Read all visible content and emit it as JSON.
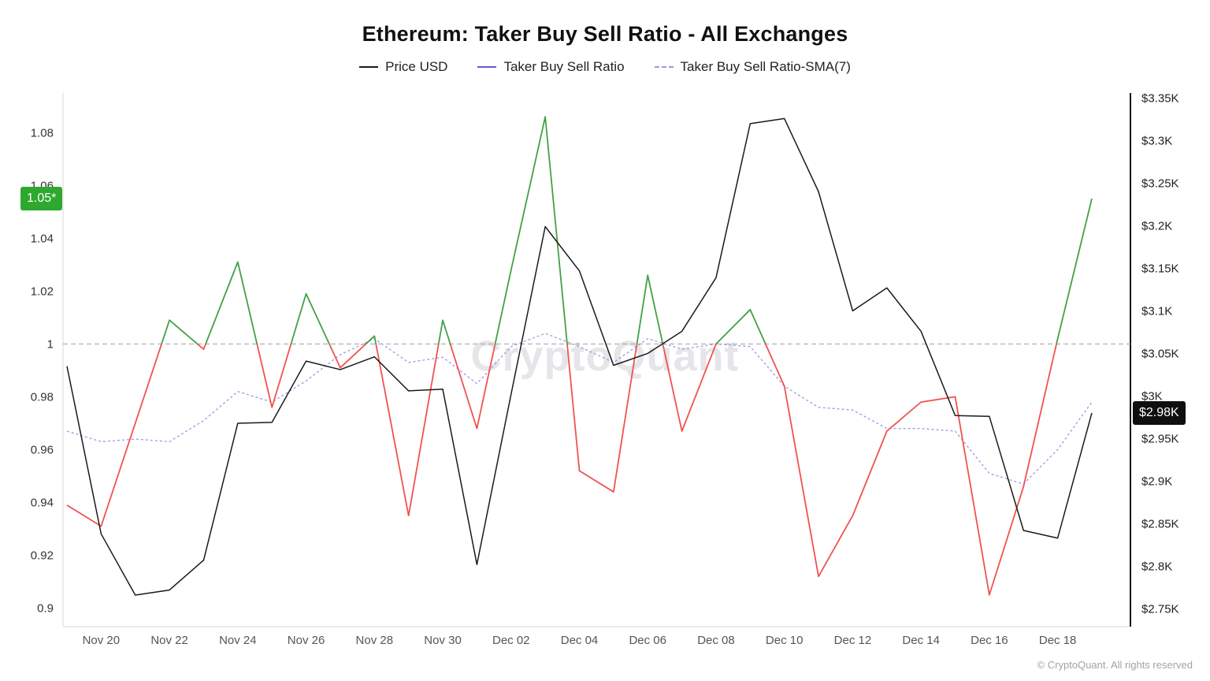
{
  "header": {
    "title": "Ethereum: Taker Buy Sell Ratio - All Exchanges"
  },
  "legend": {
    "items": [
      {
        "label": "Price USD",
        "color": "#1a1a1a",
        "style": "solid"
      },
      {
        "label": "Taker Buy Sell Ratio",
        "color": "#6a5acd",
        "style": "solid"
      },
      {
        "label": "Taker Buy Sell Ratio-SMA(7)",
        "color": "#9f97e3",
        "style": "dashed"
      }
    ]
  },
  "watermark": "CryptoQuant",
  "footer": {
    "copyright": "© CryptoQuant. All rights reserved"
  },
  "chart_data": {
    "type": "line",
    "title": "Ethereum: Taker Buy Sell Ratio - All Exchanges",
    "legend_position": "top",
    "grid": "baseline-only",
    "x": [
      "Nov 19",
      "Nov 20",
      "Nov 21",
      "Nov 22",
      "Nov 23",
      "Nov 24",
      "Nov 25",
      "Nov 26",
      "Nov 27",
      "Nov 28",
      "Nov 29",
      "Nov 30",
      "Dec 01",
      "Dec 02",
      "Dec 03",
      "Dec 04",
      "Dec 05",
      "Dec 06",
      "Dec 07",
      "Dec 08",
      "Dec 09",
      "Dec 10",
      "Dec 11",
      "Dec 12",
      "Dec 13",
      "Dec 14",
      "Dec 15",
      "Dec 16",
      "Dec 17",
      "Dec 18",
      "Dec 19"
    ],
    "x_tick_indices": [
      1,
      3,
      5,
      7,
      9,
      11,
      13,
      15,
      17,
      19,
      21,
      23,
      25,
      27,
      29
    ],
    "series": [
      {
        "name": "Price USD",
        "axis": "right",
        "unit": "K USD",
        "color": "#1a1a1a",
        "values": [
          3.035,
          2.838,
          2.766,
          2.772,
          2.807,
          2.968,
          2.969,
          3.041,
          3.031,
          3.046,
          3.006,
          3.008,
          2.802,
          3.002,
          3.199,
          3.147,
          3.036,
          3.05,
          3.076,
          3.139,
          3.32,
          3.326,
          3.24,
          3.1,
          3.127,
          3.076,
          2.977,
          2.976,
          2.842,
          2.833,
          2.98
        ]
      },
      {
        "name": "Taker Buy Sell Ratio",
        "axis": "left",
        "color_above_1": "#43a047",
        "color_below_1": "#ef5350",
        "values": [
          0.939,
          0.931,
          0.97,
          1.009,
          0.998,
          1.031,
          0.976,
          1.019,
          0.991,
          1.003,
          0.935,
          1.009,
          0.968,
          1.028,
          1.086,
          0.952,
          0.944,
          1.026,
          0.967,
          1.0,
          1.013,
          0.984,
          0.912,
          0.935,
          0.967,
          0.978,
          0.98,
          0.905,
          0.946,
          1.002,
          1.055
        ]
      },
      {
        "name": "Taker Buy Sell Ratio-SMA(7)",
        "axis": "left",
        "color": "#9f97e3",
        "dash": true,
        "values": [
          0.967,
          0.963,
          0.964,
          0.963,
          0.971,
          0.982,
          0.978,
          0.986,
          0.996,
          1.002,
          0.993,
          0.995,
          0.985,
          0.999,
          1.004,
          0.999,
          0.993,
          1.002,
          0.998,
          1.0,
          0.999,
          0.984,
          0.976,
          0.975,
          0.968,
          0.968,
          0.967,
          0.951,
          0.947,
          0.96,
          0.978
        ]
      }
    ],
    "left_axis": {
      "label": "Taker Buy Sell Ratio",
      "range": [
        0.893,
        1.095
      ],
      "baseline": 1.0,
      "ticks": [
        0.9,
        0.92,
        0.94,
        0.96,
        0.98,
        1,
        1.02,
        1.04,
        1.06,
        1.08
      ],
      "labels": [
        "0.9",
        "0.92",
        "0.94",
        "0.96",
        "0.98",
        "1",
        "1.02",
        "1.04",
        "1.06",
        "1.08"
      ]
    },
    "right_axis": {
      "label": "Price USD",
      "range": [
        2.729,
        3.356
      ],
      "ticks": [
        2.75,
        2.8,
        2.85,
        2.9,
        2.95,
        3.0,
        3.05,
        3.1,
        3.15,
        3.2,
        3.25,
        3.3,
        3.35
      ],
      "labels": [
        "$2.75K",
        "$2.8K",
        "$2.85K",
        "$2.9K",
        "$2.95K",
        "$3K",
        "$3.05K",
        "$3.1K",
        "$3.15K",
        "$3.2K",
        "$3.25K",
        "$3.3K",
        "$3.35K"
      ]
    },
    "badges": {
      "ratio": {
        "label": "1.05*",
        "value": 1.055,
        "bg": "#2fa82f"
      },
      "price": {
        "label": "$2.98K",
        "value": 2.98,
        "bg": "#0f0f0f"
      }
    },
    "colors": {
      "price": "#1a1a1a",
      "ratio_up": "#43a047",
      "ratio_down": "#ef5350",
      "sma": "#9f97e3",
      "baseline_grid": "#9e9e9e"
    }
  }
}
